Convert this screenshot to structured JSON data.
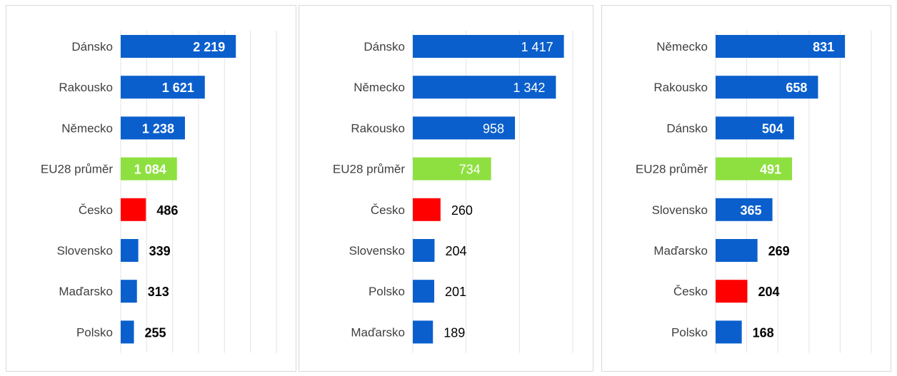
{
  "colors": {
    "default_bar": "#0a5fcc",
    "eu_bar": "#8ee040",
    "czech_bar": "#ff0000",
    "grid": "#e3e3e3",
    "label": "#404040"
  },
  "chart_data": [
    {
      "type": "bar",
      "orientation": "horizontal",
      "grid": true,
      "xlim": [
        0,
        3000
      ],
      "grid_step": 500,
      "label_style": "bold",
      "categories": [
        "Dánsko",
        "Rakousko",
        "Německo",
        "EU28 průměr",
        "Česko",
        "Slovensko",
        "Maďarsko",
        "Polsko"
      ],
      "values": [
        2219,
        1621,
        1238,
        1084,
        486,
        339,
        313,
        255
      ],
      "value_labels": [
        "2 219",
        "1 621",
        "1 238",
        "1 084",
        "486",
        "339",
        "313",
        "255"
      ],
      "highlight": {
        "EU28 průměr": "eu",
        "Česko": "czech"
      }
    },
    {
      "type": "bar",
      "orientation": "horizontal",
      "grid": true,
      "xlim": [
        0,
        1500
      ],
      "grid_step": 500,
      "label_style": "normal",
      "categories": [
        "Dánsko",
        "Německo",
        "Rakousko",
        "EU28 průměr",
        "Česko",
        "Slovensko",
        "Polsko",
        "Maďarsko"
      ],
      "values": [
        1417,
        1342,
        958,
        734,
        260,
        204,
        201,
        189
      ],
      "value_labels": [
        "1 417",
        "1 342",
        "958",
        "734",
        "260",
        "204",
        "201",
        "189"
      ],
      "highlight": {
        "EU28 průměr": "eu",
        "Česko": "czech"
      }
    },
    {
      "type": "bar",
      "orientation": "horizontal",
      "grid": true,
      "xlim": [
        0,
        1000
      ],
      "grid_step": 200,
      "label_style": "bold",
      "categories": [
        "Německo",
        "Rakousko",
        "Dánsko",
        "EU28 průměr",
        "Slovensko",
        "Maďarsko",
        "Česko",
        "Polsko"
      ],
      "values": [
        831,
        658,
        504,
        491,
        365,
        269,
        204,
        168
      ],
      "value_labels": [
        "831",
        "658",
        "504",
        "491",
        "365",
        "269",
        "204",
        "168"
      ],
      "highlight": {
        "EU28 průměr": "eu",
        "Česko": "czech"
      }
    }
  ]
}
